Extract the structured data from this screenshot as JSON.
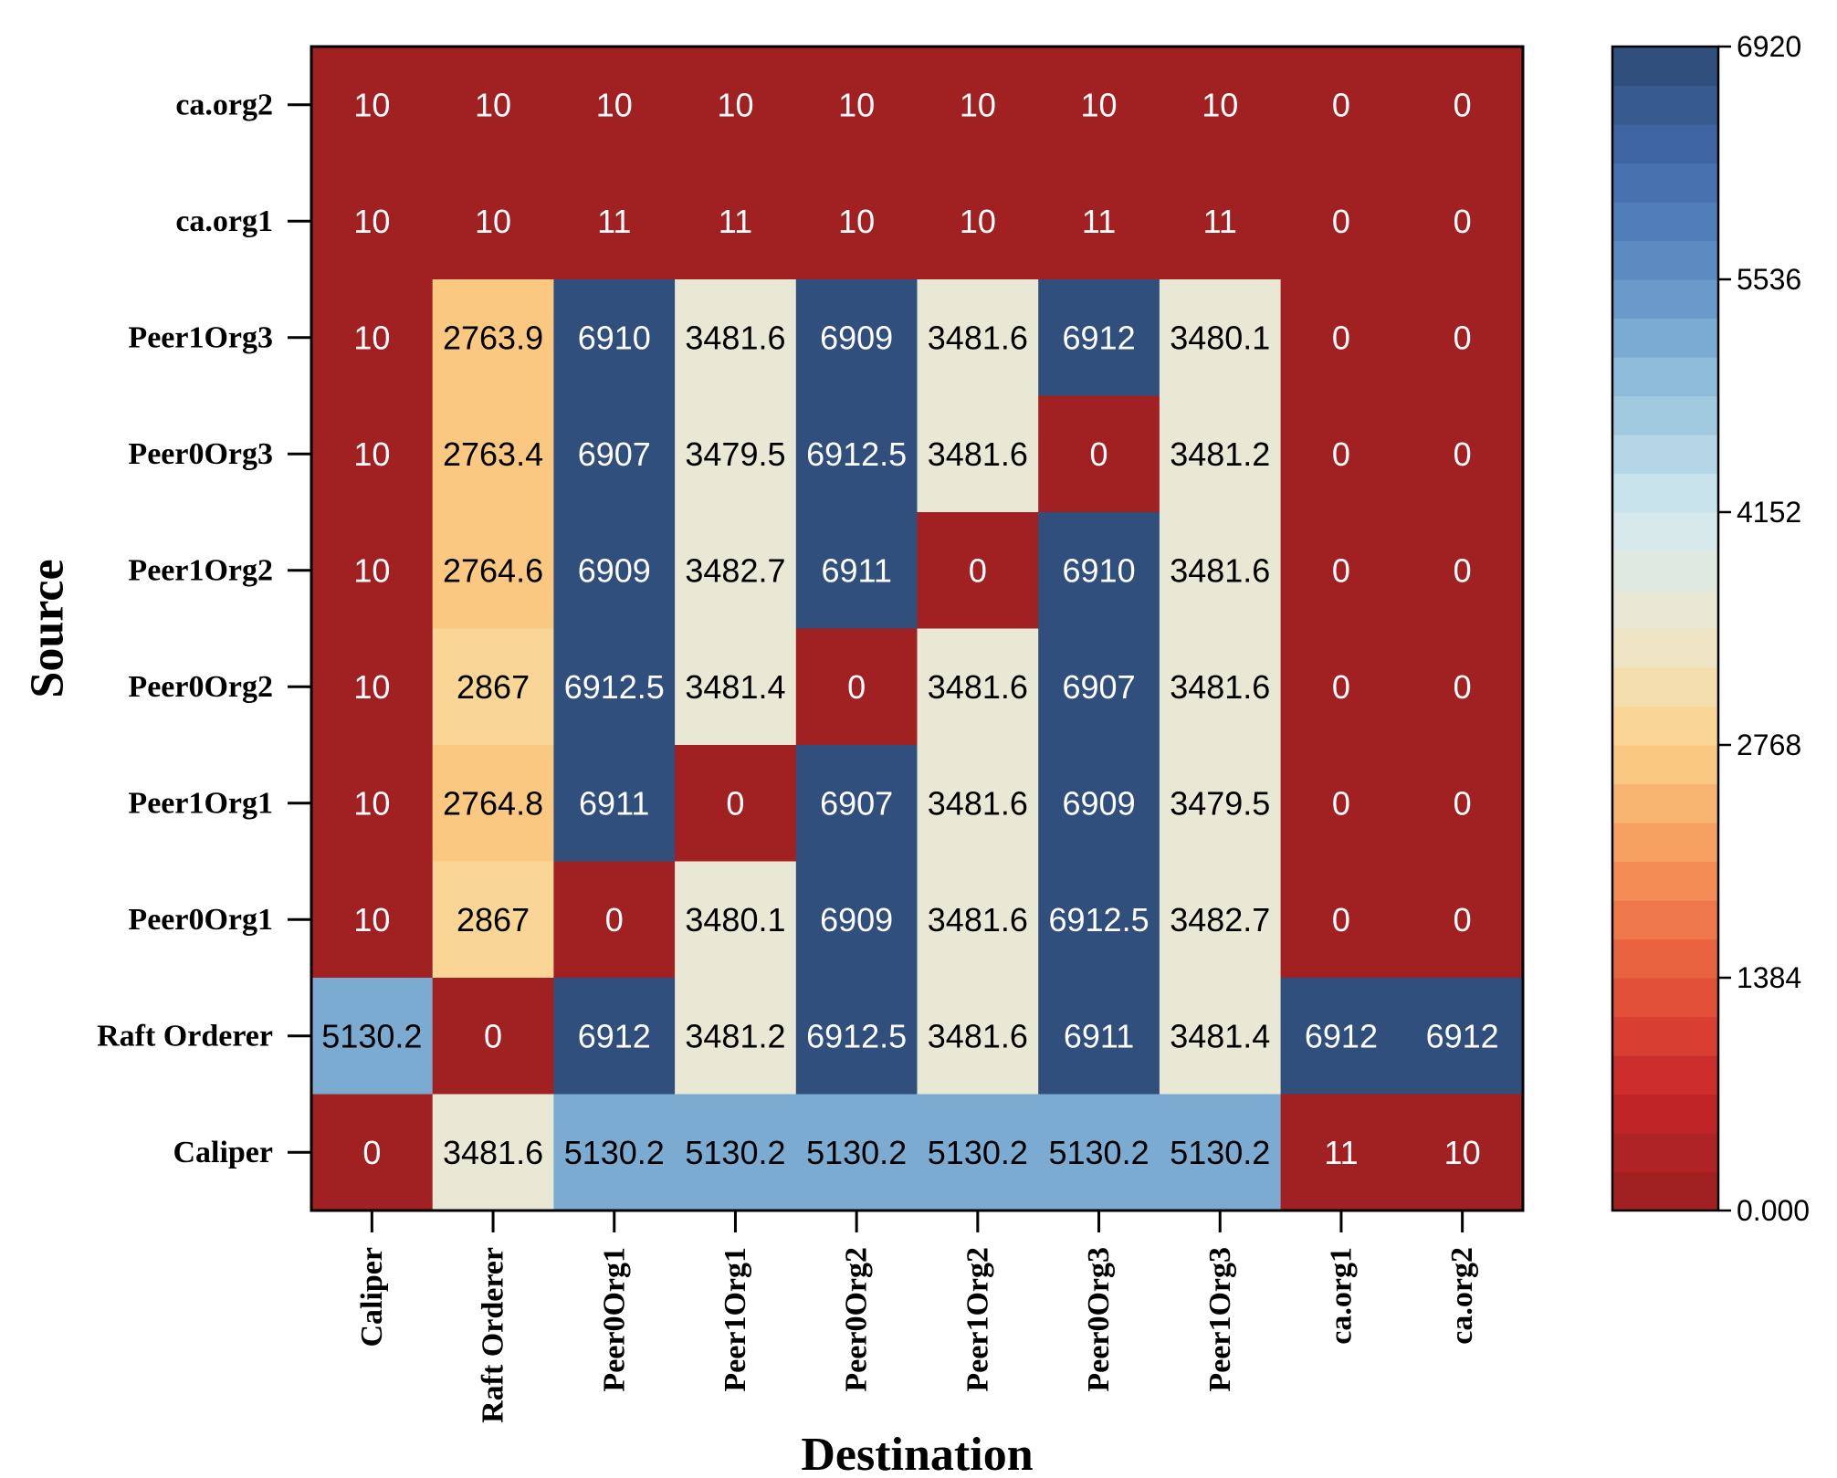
{
  "chart_data": {
    "type": "heatmap",
    "xlabel": "Destination",
    "ylabel": "Source",
    "x_categories": [
      "Caliper",
      "Raft Orderer",
      "Peer0Org1",
      "Peer1Org1",
      "Peer0Org2",
      "Peer1Org2",
      "Peer0Org3",
      "Peer1Org3",
      "ca.org1",
      "ca.org2"
    ],
    "y_categories": [
      "ca.org2",
      "ca.org1",
      "Peer1Org3",
      "Peer0Org3",
      "Peer1Org2",
      "Peer0Org2",
      "Peer1Org1",
      "Peer0Org1",
      "Raft Orderer",
      "Caliper"
    ],
    "values": [
      [
        "10",
        "10",
        "10",
        "10",
        "10",
        "10",
        "10",
        "10",
        "0",
        "0"
      ],
      [
        "10",
        "10",
        "11",
        "11",
        "10",
        "10",
        "11",
        "11",
        "0",
        "0"
      ],
      [
        "10",
        "2763.9",
        "6910",
        "3481.6",
        "6909",
        "3481.6",
        "6912",
        "3480.1",
        "0",
        "0"
      ],
      [
        "10",
        "2763.4",
        "6907",
        "3479.5",
        "6912.5",
        "3481.6",
        "0",
        "3481.2",
        "0",
        "0"
      ],
      [
        "10",
        "2764.6",
        "6909",
        "3482.7",
        "6911",
        "0",
        "6910",
        "3481.6",
        "0",
        "0"
      ],
      [
        "10",
        "2867",
        "6912.5",
        "3481.4",
        "0",
        "3481.6",
        "6907",
        "3481.6",
        "0",
        "0"
      ],
      [
        "10",
        "2764.8",
        "6911",
        "0",
        "6907",
        "3481.6",
        "6909",
        "3479.5",
        "0",
        "0"
      ],
      [
        "10",
        "2867",
        "0",
        "3480.1",
        "6909",
        "3481.6",
        "6912.5",
        "3482.7",
        "0",
        "0"
      ],
      [
        "5130.2",
        "0",
        "6912",
        "3481.2",
        "6912.5",
        "3481.6",
        "6911",
        "3481.4",
        "6912",
        "6912"
      ],
      [
        "0",
        "3481.6",
        "5130.2",
        "5130.2",
        "5130.2",
        "5130.2",
        "5130.2",
        "5130.2",
        "11",
        "10"
      ]
    ],
    "colorbar": {
      "min": 0,
      "max": 6920,
      "ticks": [
        "0.000",
        "1384",
        "2768",
        "4152",
        "5536",
        "6920"
      ],
      "levels": 30,
      "colormap": "RdYlBu"
    }
  }
}
